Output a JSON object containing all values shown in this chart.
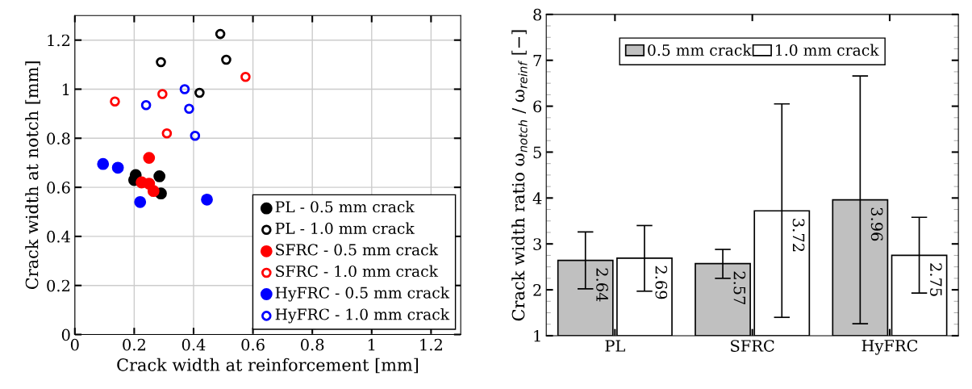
{
  "chart_data": [
    {
      "type": "scatter",
      "xlabel": "Crack width at reinforcement [mm]",
      "ylabel": "Crack width at notch [mm]",
      "xlim": [
        0,
        1.3
      ],
      "ylim": [
        0,
        1.3
      ],
      "xticks": [
        0,
        0.2,
        0.4,
        0.6,
        0.8,
        1,
        1.2
      ],
      "yticks": [
        0,
        0.2,
        0.4,
        0.6,
        0.8,
        1,
        1.2
      ],
      "grid": true,
      "legend": "bottom right",
      "marker": "circle",
      "series": [
        {
          "name": "PL - 0.5 mm crack",
          "color": "#000000",
          "x": [
            0.2,
            0.205,
            0.285,
            0.29
          ],
          "values": [
            0.63,
            0.65,
            0.645,
            0.575
          ]
        },
        {
          "name": "PL - 1.0 mm crack",
          "color": "#000000",
          "x": [
            0.29,
            0.49,
            0.51,
            0.42
          ],
          "values": [
            1.11,
            1.225,
            1.12,
            0.985
          ]
        },
        {
          "name": "SFRC - 0.5 mm crack",
          "color": "#ff0000",
          "x": [
            0.25,
            0.225,
            0.25,
            0.265
          ],
          "values": [
            0.72,
            0.62,
            0.615,
            0.585
          ]
        },
        {
          "name": "SFRC - 1.0 mm crack",
          "color": "#ff0000",
          "x": [
            0.135,
            0.295,
            0.31,
            0.575
          ],
          "values": [
            0.95,
            0.98,
            0.82,
            1.05
          ]
        },
        {
          "name": "HyFRC - 0.5 mm crack",
          "color": "#0000ff",
          "x": [
            0.095,
            0.145,
            0.22,
            0.445
          ],
          "values": [
            0.695,
            0.68,
            0.54,
            0.55
          ]
        },
        {
          "name": "HyFRC - 1.0 mm crack",
          "color": "#0000ff",
          "x": [
            0.24,
            0.37,
            0.385,
            0.405
          ],
          "values": [
            0.935,
            1.0,
            0.92,
            0.81
          ]
        }
      ]
    },
    {
      "type": "bar",
      "ylabel": "Crack width ratio ω$_{notch}$ / ω$_{reinf}$ [−]",
      "categories": [
        "PL",
        "SFRC",
        "HyFRC"
      ],
      "ylim": [
        1,
        8
      ],
      "yticks": [
        1,
        2,
        3,
        4,
        5,
        6,
        7,
        8
      ],
      "grid": false,
      "legend": "top",
      "data_labels": true,
      "series": [
        {
          "name": "0.5 mm crack",
          "color": "#c0c0c0",
          "values": [
            2.64,
            2.57,
            3.96
          ],
          "errors": [
            [
              2.02,
              3.26
            ],
            [
              2.25,
              2.88
            ],
            [
              1.26,
              6.66
            ]
          ]
        },
        {
          "name": "1.0 mm crack",
          "color": "#ffffff",
          "values": [
            2.69,
            3.72,
            2.75
          ],
          "errors": [
            [
              1.97,
              3.4
            ],
            [
              1.4,
              6.05
            ],
            [
              1.93,
              3.58
            ]
          ]
        }
      ]
    }
  ]
}
